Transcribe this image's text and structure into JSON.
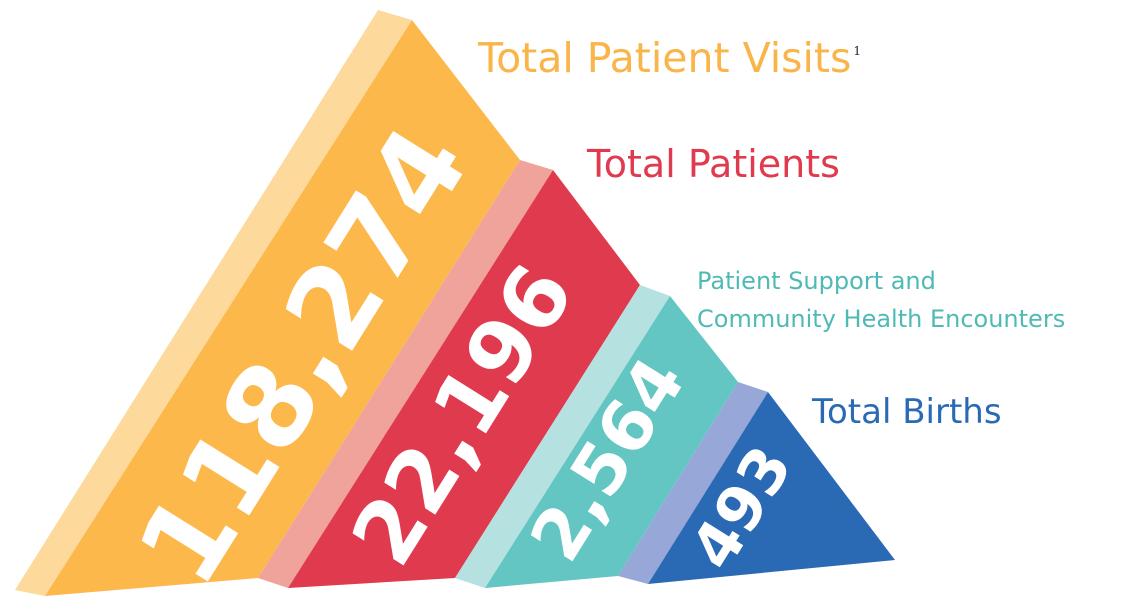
{
  "segments": [
    {
      "value": "118,274",
      "label": "Total Patient Visits",
      "footnote": "1",
      "color": "#fcb84a",
      "side_color": "#fdd99b"
    },
    {
      "value": "22,196",
      "label": "Total Patients",
      "color": "#e03a4f",
      "side_color": "#f0a39a"
    },
    {
      "value": "2,564",
      "label_lines": [
        "Patient Support and",
        "Community Health Encounters"
      ],
      "color": "#63c6c3",
      "side_color": "#b5e1e0"
    },
    {
      "value": "493",
      "label": "Total Births",
      "color": "#2a6ab4",
      "side_color": "#96a7d8"
    }
  ]
}
